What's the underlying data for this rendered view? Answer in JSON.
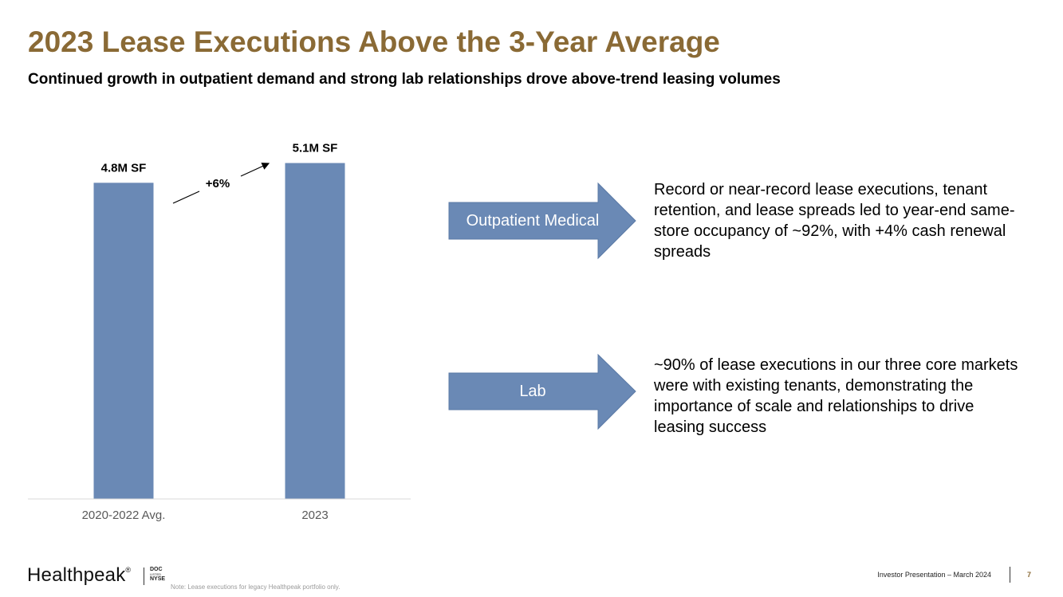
{
  "header": {
    "title": "2023 Lease Executions Above the 3-Year Average",
    "subtitle": "Continued growth in outpatient demand and strong lab relationships drove above-trend leasing volumes"
  },
  "chart_data": {
    "type": "bar",
    "categories": [
      "2020-2022 Avg.",
      "2023"
    ],
    "values": [
      4.8,
      5.1
    ],
    "data_labels": [
      "4.8M SF",
      "5.1M SF"
    ],
    "unit": "M SF",
    "ylim": [
      0,
      5.76
    ],
    "growth_annotation": "+6%",
    "bar_color": "#6a89b5",
    "axis_color": "#d9d9d9",
    "grid": false
  },
  "callouts": [
    {
      "label": "Outpatient Medical",
      "text": "Record or near-record lease executions, tenant retention, and lease spreads led to year-end same-store occupancy of ~92%, with +4% cash renewal spreads"
    },
    {
      "label": "Lab",
      "text": "~90% of lease executions in our three core markets were with existing tenants, demonstrating the importance of scale and relationships to drive leasing success"
    }
  ],
  "footer": {
    "logo": "Healthpeak",
    "logo_mark": "®",
    "ticker_top": "DOC",
    "ticker_mid": "LISTED",
    "ticker_bottom": "NYSE",
    "note": "Note: Lease executions for legacy Healthpeak portfolio only.",
    "presentation": "Investor Presentation – March 2024",
    "page": "7"
  },
  "colors": {
    "title": "#8a6a35",
    "arrow": "#6a89b5",
    "arrow_border": "#5b7aa6"
  }
}
